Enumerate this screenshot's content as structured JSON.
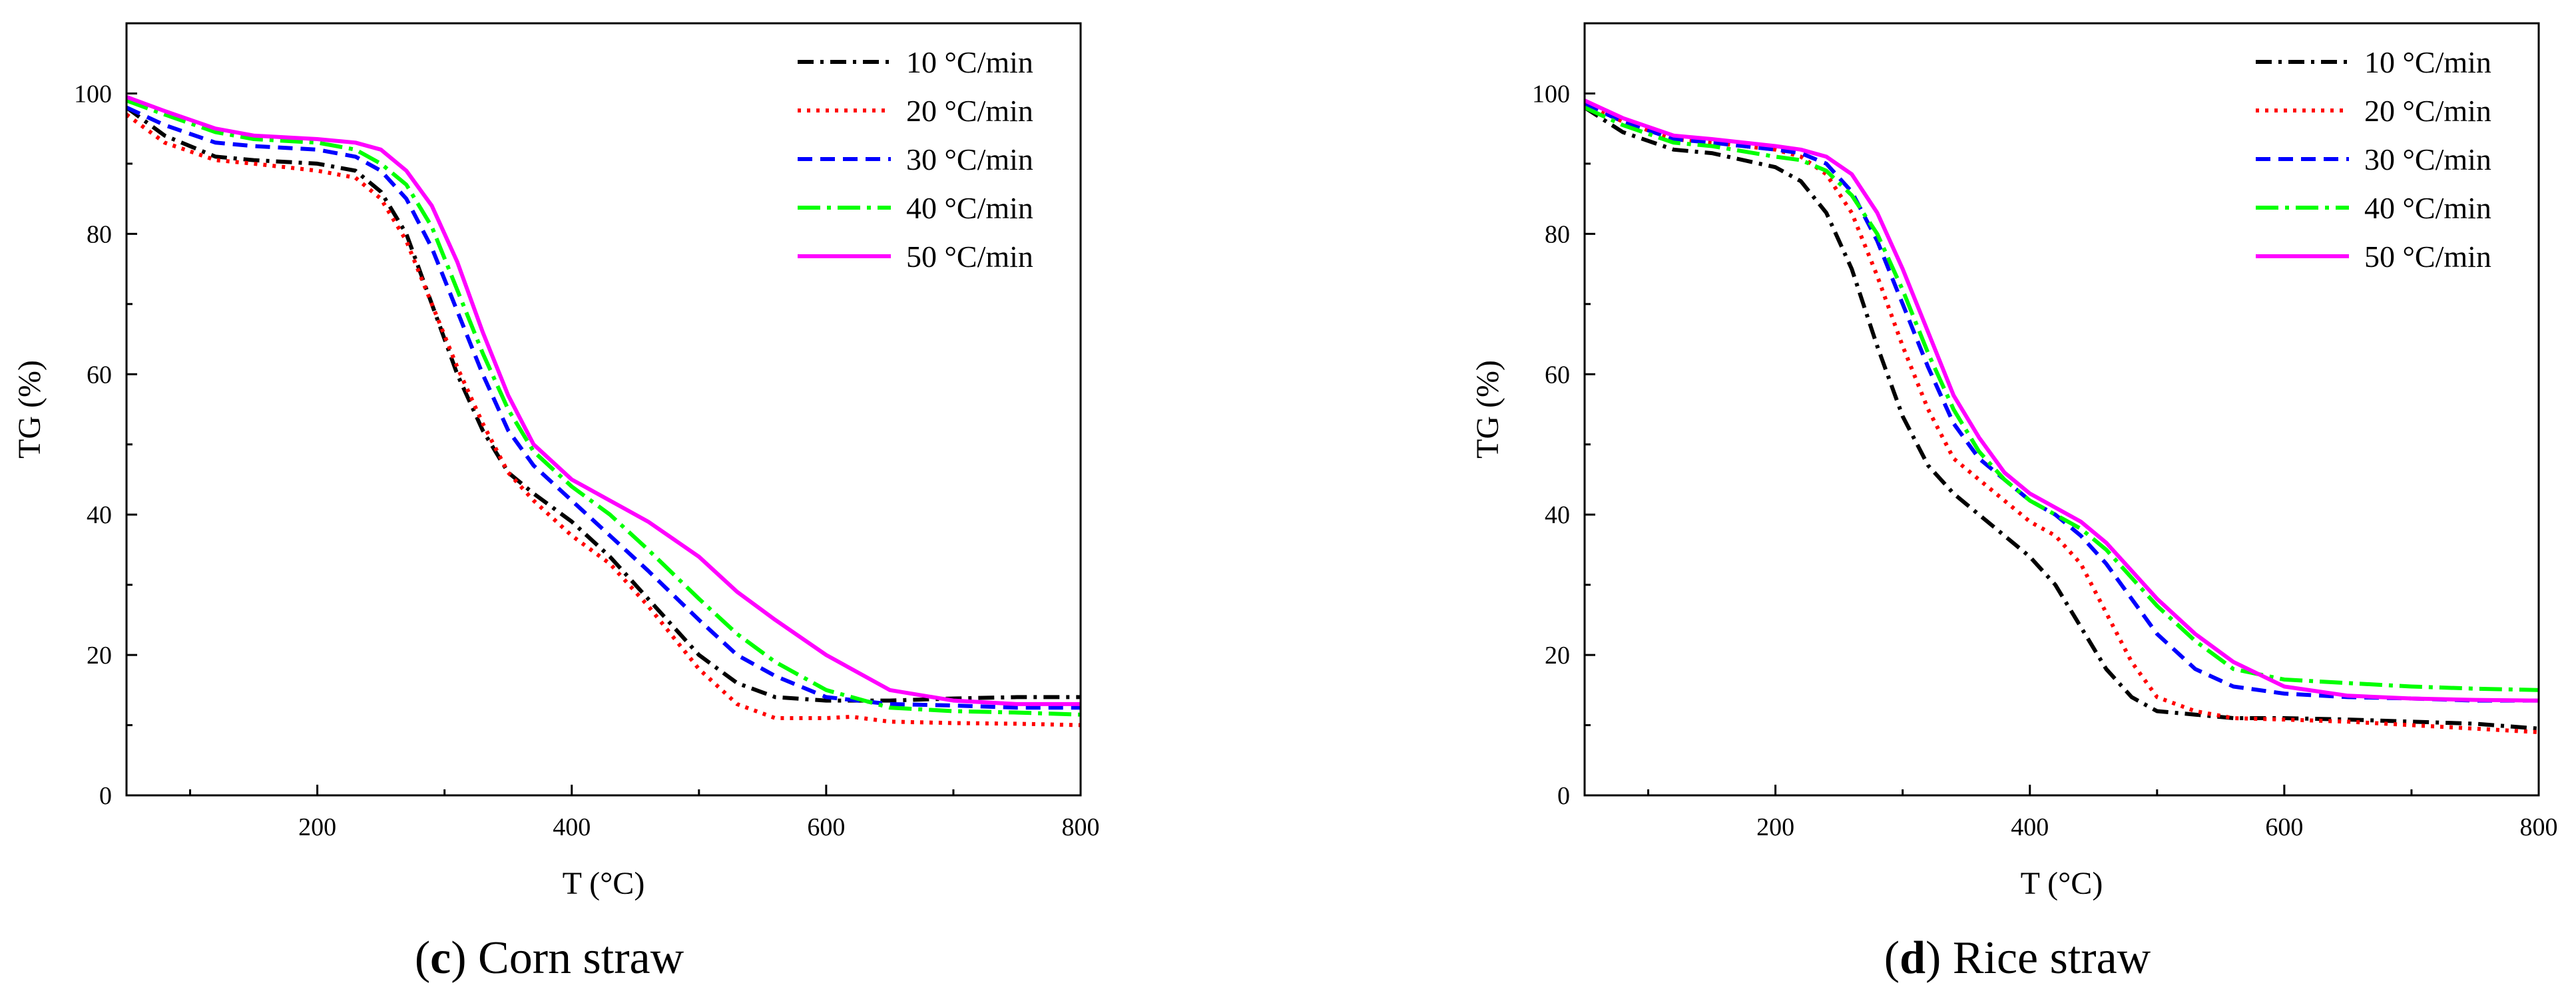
{
  "chart_data": [
    {
      "type": "line",
      "caption": {
        "prefix": "(",
        "letter": "c",
        "text": ") Corn straw"
      },
      "xlabel": "T (°C)",
      "ylabel": "TG (%)",
      "xlim": [
        50,
        800
      ],
      "ylim": [
        0,
        110
      ],
      "xticks": [
        200,
        400,
        600,
        800
      ],
      "yticks": [
        0,
        20,
        40,
        60,
        80,
        100
      ],
      "legend_position": "top-right",
      "series": [
        {
          "name": "10 °C/min",
          "color": "#000000",
          "style": "dashdot",
          "x": [
            50,
            80,
            120,
            150,
            200,
            230,
            250,
            270,
            290,
            310,
            330,
            350,
            370,
            400,
            430,
            460,
            500,
            530,
            560,
            600,
            650,
            700,
            750,
            800
          ],
          "y": [
            98,
            94,
            91,
            90.5,
            90,
            89,
            86,
            80,
            70,
            60,
            52,
            46,
            43,
            39,
            34,
            28,
            20,
            16,
            14,
            13.5,
            13.5,
            13.8,
            14,
            14
          ]
        },
        {
          "name": "20 °C/min",
          "color": "#ff0000",
          "style": "dotted",
          "x": [
            50,
            80,
            120,
            150,
            200,
            230,
            250,
            270,
            290,
            310,
            330,
            350,
            370,
            400,
            430,
            460,
            500,
            530,
            560,
            600,
            620,
            650,
            700,
            750,
            800
          ],
          "y": [
            97,
            93,
            90.5,
            90,
            89,
            88,
            85,
            79,
            70,
            61,
            53,
            46,
            42,
            37,
            33,
            27,
            18,
            13,
            11,
            11,
            11.2,
            10.5,
            10.3,
            10.2,
            10
          ]
        },
        {
          "name": "30 °C/min",
          "color": "#0000ff",
          "style": "dashed",
          "x": [
            50,
            80,
            120,
            150,
            200,
            230,
            250,
            270,
            290,
            310,
            330,
            350,
            370,
            400,
            430,
            460,
            500,
            530,
            560,
            600,
            650,
            700,
            750,
            800
          ],
          "y": [
            98,
            95.5,
            93,
            92.5,
            92,
            91,
            89,
            85,
            78,
            69,
            60,
            52,
            47,
            42,
            37,
            32,
            25,
            20,
            17,
            14,
            13,
            12.8,
            12.5,
            12.5
          ]
        },
        {
          "name": "40 °C/min",
          "color": "#00ff00",
          "style": "longdashdot",
          "x": [
            50,
            80,
            120,
            150,
            200,
            230,
            250,
            270,
            290,
            310,
            330,
            350,
            370,
            400,
            430,
            460,
            500,
            530,
            560,
            600,
            650,
            700,
            750,
            800
          ],
          "y": [
            99,
            97,
            94.5,
            93.5,
            93,
            92,
            90,
            87,
            81,
            72,
            63,
            55,
            49,
            44,
            40,
            35,
            28,
            23,
            19,
            15,
            12.5,
            12,
            11.8,
            11.5
          ]
        },
        {
          "name": "50 °C/min",
          "color": "#ff00ff",
          "style": "solid",
          "x": [
            50,
            80,
            120,
            150,
            200,
            230,
            250,
            270,
            290,
            310,
            330,
            350,
            370,
            400,
            430,
            460,
            500,
            530,
            560,
            600,
            650,
            700,
            750,
            800
          ],
          "y": [
            99.5,
            97.5,
            95,
            94,
            93.5,
            93,
            92,
            89,
            84,
            76,
            66,
            57,
            50,
            45,
            42,
            39,
            34,
            29,
            25,
            20,
            15,
            13.5,
            13,
            13
          ]
        }
      ]
    },
    {
      "type": "line",
      "caption": {
        "prefix": "(",
        "letter": "d",
        "text": ") Rice straw"
      },
      "xlabel": "T (°C)",
      "ylabel": "TG (%)",
      "xlim": [
        50,
        800
      ],
      "ylim": [
        0,
        110
      ],
      "xticks": [
        200,
        400,
        600,
        800
      ],
      "yticks": [
        0,
        20,
        40,
        60,
        80,
        100
      ],
      "legend_position": "top-right",
      "series": [
        {
          "name": "10 °C/min",
          "color": "#000000",
          "style": "dashdot",
          "x": [
            50,
            80,
            120,
            150,
            200,
            220,
            240,
            260,
            280,
            300,
            320,
            340,
            360,
            380,
            400,
            420,
            440,
            460,
            480,
            500,
            530,
            560,
            600,
            650,
            700,
            750,
            800
          ],
          "y": [
            98,
            94.5,
            92,
            91.5,
            89.5,
            87.5,
            83,
            75,
            64,
            54,
            47,
            43,
            40,
            37,
            34,
            30,
            24,
            18,
            14,
            12,
            11.5,
            11,
            11,
            10.8,
            10.5,
            10.2,
            9.5
          ]
        },
        {
          "name": "20 °C/min",
          "color": "#ff0000",
          "style": "dotted",
          "x": [
            50,
            80,
            120,
            150,
            200,
            220,
            240,
            260,
            280,
            300,
            320,
            340,
            360,
            380,
            400,
            420,
            440,
            460,
            480,
            500,
            530,
            560,
            600,
            650,
            700,
            750,
            800
          ],
          "y": [
            98.5,
            96,
            93.5,
            93,
            92,
            91,
            88.5,
            83,
            74,
            64,
            55,
            48,
            45,
            42,
            39,
            37,
            33,
            26,
            19,
            14,
            12,
            11,
            10.8,
            10.5,
            10,
            9.5,
            9
          ]
        },
        {
          "name": "30 °C/min",
          "color": "#0000ff",
          "style": "dashed",
          "x": [
            50,
            80,
            120,
            150,
            200,
            220,
            240,
            260,
            280,
            300,
            320,
            340,
            360,
            380,
            400,
            420,
            440,
            460,
            480,
            500,
            530,
            560,
            600,
            650,
            700,
            750,
            800
          ],
          "y": [
            98.5,
            96,
            93.5,
            93,
            92,
            91.5,
            90,
            86,
            79,
            70,
            61,
            53,
            48,
            45,
            42,
            40,
            37,
            33,
            28,
            23,
            18,
            15.5,
            14.5,
            14,
            13.8,
            13.5,
            13.5
          ]
        },
        {
          "name": "40 °C/min",
          "color": "#00ff00",
          "style": "longdashdot",
          "x": [
            50,
            80,
            120,
            150,
            200,
            220,
            240,
            260,
            280,
            300,
            320,
            340,
            360,
            380,
            400,
            420,
            440,
            460,
            480,
            500,
            530,
            560,
            600,
            650,
            700,
            750,
            800
          ],
          "y": [
            98,
            95.5,
            93,
            92.5,
            91,
            90.5,
            89,
            85.5,
            80,
            72,
            63,
            55,
            49,
            45,
            42,
            40,
            38,
            35,
            31,
            27,
            22,
            18,
            16.5,
            16,
            15.5,
            15.2,
            15
          ]
        },
        {
          "name": "50 °C/min",
          "color": "#ff00ff",
          "style": "solid",
          "x": [
            50,
            80,
            120,
            150,
            200,
            220,
            240,
            260,
            280,
            300,
            320,
            340,
            360,
            380,
            400,
            420,
            440,
            460,
            480,
            500,
            530,
            560,
            600,
            650,
            700,
            750,
            800
          ],
          "y": [
            99,
            96.5,
            94,
            93.5,
            92.5,
            92,
            91,
            88.5,
            83,
            75,
            66,
            57,
            51,
            46,
            43,
            41,
            39,
            36,
            32,
            28,
            23,
            19,
            15.5,
            14.2,
            13.8,
            13.6,
            13.5
          ]
        }
      ]
    }
  ]
}
